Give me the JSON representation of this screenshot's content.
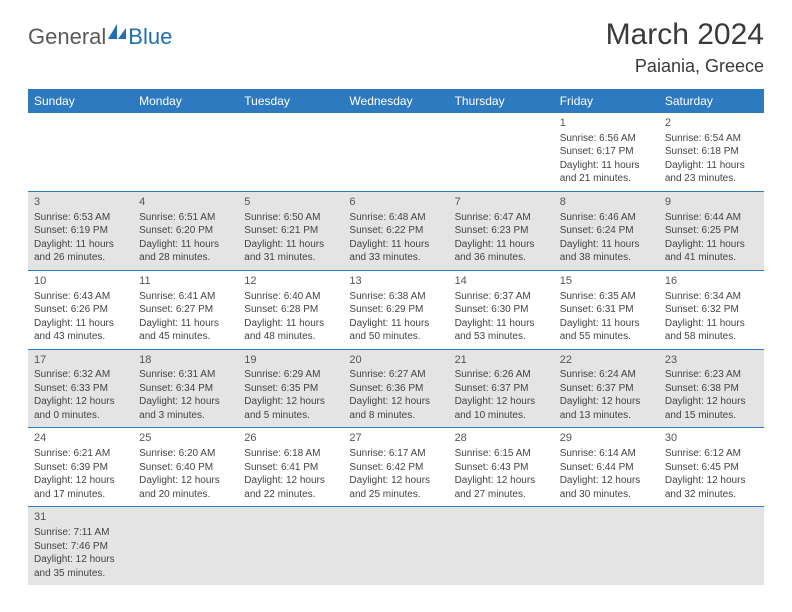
{
  "logo": {
    "general": "General",
    "blue": "Blue"
  },
  "title": "March 2024",
  "location": "Paiania, Greece",
  "colors": {
    "header_bg": "#2e7ac0",
    "header_fg": "#ffffff",
    "row_even_bg": "#e4e4e4",
    "row_odd_bg": "#ffffff",
    "border": "#2e7ac0",
    "text": "#444444",
    "title_color": "#3a3a3a",
    "logo_gray": "#5a5a5a",
    "logo_blue": "#1f6fb2"
  },
  "weekday_labels": [
    "Sunday",
    "Monday",
    "Tuesday",
    "Wednesday",
    "Thursday",
    "Friday",
    "Saturday"
  ],
  "labels": {
    "sunrise": "Sunrise:",
    "sunset": "Sunset:",
    "daylight": "Daylight:"
  },
  "weeks": [
    {
      "shade": "odd",
      "days": [
        null,
        null,
        null,
        null,
        null,
        {
          "n": "1",
          "rise": "6:56 AM",
          "set": "6:17 PM",
          "h": "11",
          "m": "21"
        },
        {
          "n": "2",
          "rise": "6:54 AM",
          "set": "6:18 PM",
          "h": "11",
          "m": "23"
        }
      ]
    },
    {
      "shade": "even",
      "days": [
        {
          "n": "3",
          "rise": "6:53 AM",
          "set": "6:19 PM",
          "h": "11",
          "m": "26"
        },
        {
          "n": "4",
          "rise": "6:51 AM",
          "set": "6:20 PM",
          "h": "11",
          "m": "28"
        },
        {
          "n": "5",
          "rise": "6:50 AM",
          "set": "6:21 PM",
          "h": "11",
          "m": "31"
        },
        {
          "n": "6",
          "rise": "6:48 AM",
          "set": "6:22 PM",
          "h": "11",
          "m": "33"
        },
        {
          "n": "7",
          "rise": "6:47 AM",
          "set": "6:23 PM",
          "h": "11",
          "m": "36"
        },
        {
          "n": "8",
          "rise": "6:46 AM",
          "set": "6:24 PM",
          "h": "11",
          "m": "38"
        },
        {
          "n": "9",
          "rise": "6:44 AM",
          "set": "6:25 PM",
          "h": "11",
          "m": "41"
        }
      ]
    },
    {
      "shade": "odd",
      "days": [
        {
          "n": "10",
          "rise": "6:43 AM",
          "set": "6:26 PM",
          "h": "11",
          "m": "43"
        },
        {
          "n": "11",
          "rise": "6:41 AM",
          "set": "6:27 PM",
          "h": "11",
          "m": "45"
        },
        {
          "n": "12",
          "rise": "6:40 AM",
          "set": "6:28 PM",
          "h": "11",
          "m": "48"
        },
        {
          "n": "13",
          "rise": "6:38 AM",
          "set": "6:29 PM",
          "h": "11",
          "m": "50"
        },
        {
          "n": "14",
          "rise": "6:37 AM",
          "set": "6:30 PM",
          "h": "11",
          "m": "53"
        },
        {
          "n": "15",
          "rise": "6:35 AM",
          "set": "6:31 PM",
          "h": "11",
          "m": "55"
        },
        {
          "n": "16",
          "rise": "6:34 AM",
          "set": "6:32 PM",
          "h": "11",
          "m": "58"
        }
      ]
    },
    {
      "shade": "even",
      "days": [
        {
          "n": "17",
          "rise": "6:32 AM",
          "set": "6:33 PM",
          "h": "12",
          "m": "0"
        },
        {
          "n": "18",
          "rise": "6:31 AM",
          "set": "6:34 PM",
          "h": "12",
          "m": "3"
        },
        {
          "n": "19",
          "rise": "6:29 AM",
          "set": "6:35 PM",
          "h": "12",
          "m": "5"
        },
        {
          "n": "20",
          "rise": "6:27 AM",
          "set": "6:36 PM",
          "h": "12",
          "m": "8"
        },
        {
          "n": "21",
          "rise": "6:26 AM",
          "set": "6:37 PM",
          "h": "12",
          "m": "10"
        },
        {
          "n": "22",
          "rise": "6:24 AM",
          "set": "6:37 PM",
          "h": "12",
          "m": "13"
        },
        {
          "n": "23",
          "rise": "6:23 AM",
          "set": "6:38 PM",
          "h": "12",
          "m": "15"
        }
      ]
    },
    {
      "shade": "odd",
      "days": [
        {
          "n": "24",
          "rise": "6:21 AM",
          "set": "6:39 PM",
          "h": "12",
          "m": "17"
        },
        {
          "n": "25",
          "rise": "6:20 AM",
          "set": "6:40 PM",
          "h": "12",
          "m": "20"
        },
        {
          "n": "26",
          "rise": "6:18 AM",
          "set": "6:41 PM",
          "h": "12",
          "m": "22"
        },
        {
          "n": "27",
          "rise": "6:17 AM",
          "set": "6:42 PM",
          "h": "12",
          "m": "25"
        },
        {
          "n": "28",
          "rise": "6:15 AM",
          "set": "6:43 PM",
          "h": "12",
          "m": "27"
        },
        {
          "n": "29",
          "rise": "6:14 AM",
          "set": "6:44 PM",
          "h": "12",
          "m": "30"
        },
        {
          "n": "30",
          "rise": "6:12 AM",
          "set": "6:45 PM",
          "h": "12",
          "m": "32"
        }
      ]
    },
    {
      "shade": "even",
      "last": true,
      "days": [
        {
          "n": "31",
          "rise": "7:11 AM",
          "set": "7:46 PM",
          "h": "12",
          "m": "35"
        },
        null,
        null,
        null,
        null,
        null,
        null
      ]
    }
  ]
}
